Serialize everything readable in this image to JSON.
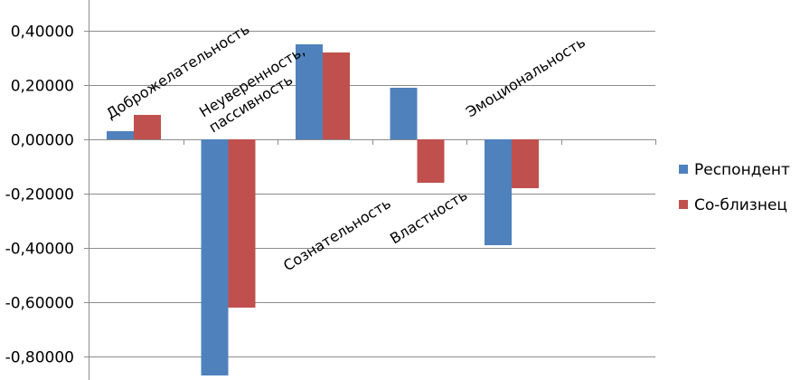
{
  "chart_data": {
    "type": "bar",
    "title": "",
    "xlabel": "",
    "ylabel": "",
    "categories": [
      [
        "Доброжелательность"
      ],
      [
        "Неуверенность,",
        "пассивность"
      ],
      [
        "Сознательность"
      ],
      [
        "Властность"
      ],
      [
        "Эмоциональность"
      ],
      [
        ""
      ]
    ],
    "series": [
      {
        "name": "Респондент",
        "color": "#4F81BD",
        "values": [
          0.03,
          -0.87,
          0.35,
          0.19,
          -0.39,
          null
        ]
      },
      {
        "name": "Со-близнец",
        "color": "#C0504D",
        "values": [
          0.09,
          -0.62,
          0.32,
          -0.16,
          -0.18,
          null
        ]
      }
    ],
    "ylim": [
      -0.9,
      0.5
    ],
    "yticks": [
      {
        "value": 0.4,
        "label": "0,40000"
      },
      {
        "value": 0.2,
        "label": "0,20000"
      },
      {
        "value": 0.0,
        "label": "0,00000"
      },
      {
        "value": -0.2,
        "label": "-0,20000"
      },
      {
        "value": -0.4,
        "label": "-0,40000"
      },
      {
        "value": -0.6,
        "label": "-0,60000"
      },
      {
        "value": -0.8,
        "label": "-0,80000"
      }
    ],
    "grid": true,
    "legend_position": "right"
  }
}
